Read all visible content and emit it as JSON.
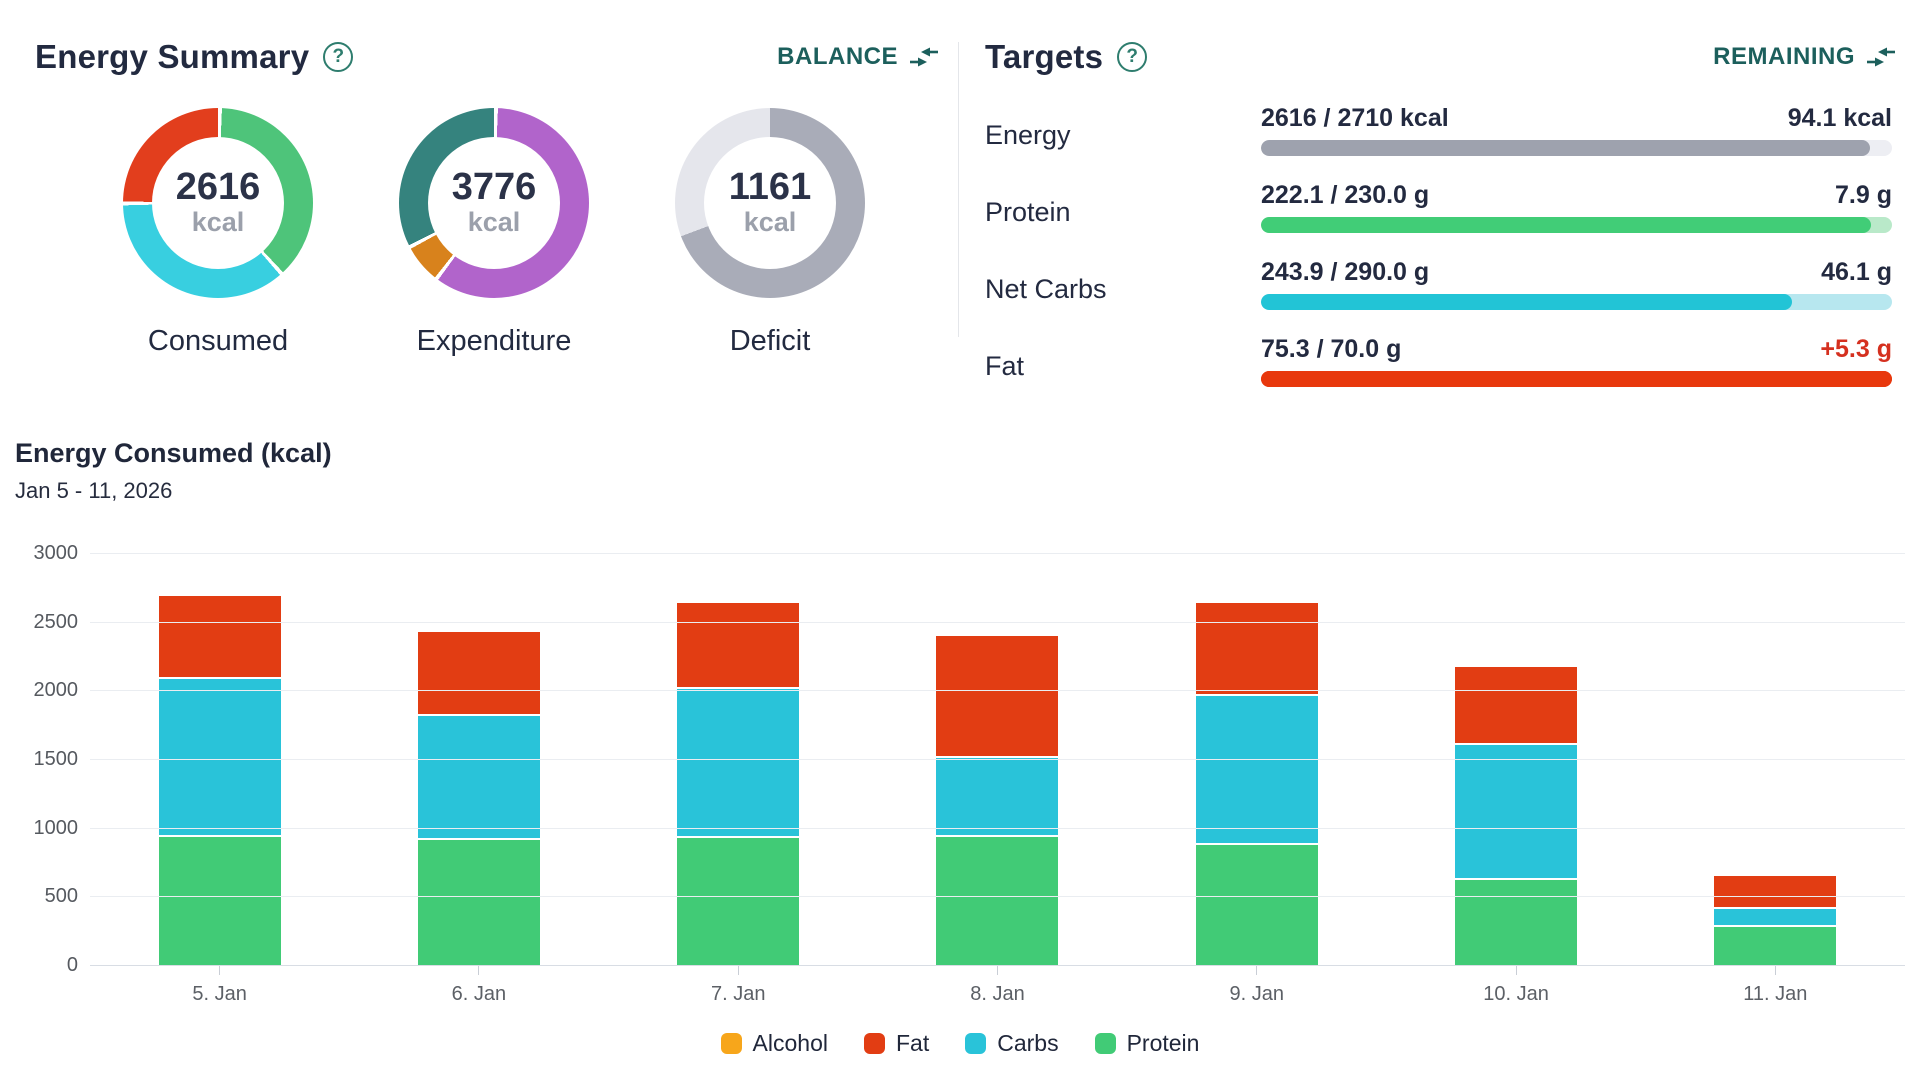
{
  "energy_summary": {
    "title": "Energy Summary",
    "help_glyph": "?",
    "balance_label": "BALANCE",
    "donuts": [
      {
        "label": "Consumed",
        "value": "2616",
        "unit": "kcal",
        "gaps": true,
        "segments": [
          {
            "name": "protein",
            "color": "#4EC47A",
            "pct": 38.0
          },
          {
            "name": "carbs",
            "color": "#38CFE0",
            "pct": 36.6
          },
          {
            "name": "fat",
            "color": "#E23E1D",
            "pct": 25.4
          }
        ]
      },
      {
        "label": "Expenditure",
        "value": "3776",
        "unit": "kcal",
        "gaps": true,
        "segments": [
          {
            "name": "bmr",
            "color": "#B164CB",
            "pct": 60.0
          },
          {
            "name": "exercise",
            "color": "#D8821C",
            "pct": 7.0
          },
          {
            "name": "activity",
            "color": "#35837E",
            "pct": 33.0
          }
        ]
      },
      {
        "label": "Deficit",
        "value": "1161",
        "unit": "kcal",
        "gaps": false,
        "segments": [
          {
            "name": "consumed",
            "color": "#A9ACB8",
            "pct": 69.3
          },
          {
            "name": "remaining",
            "color": "#E5E6EC",
            "pct": 30.7
          }
        ]
      }
    ]
  },
  "targets": {
    "title": "Targets",
    "help_glyph": "?",
    "remaining_label": "REMAINING",
    "rows": [
      {
        "label": "Energy",
        "progress_text": "2616 / 2710 kcal",
        "remaining_text": "94.1 kcal",
        "remaining_color": "#232A40",
        "pct": 96.5,
        "fill": "#9EA2AE",
        "track": "#EDEEF3"
      },
      {
        "label": "Protein",
        "progress_text": "222.1 / 230.0 g",
        "remaining_text": "7.9 g",
        "remaining_color": "#232A40",
        "pct": 96.6,
        "fill": "#41CD77",
        "track": "#B9E9C9"
      },
      {
        "label": "Net Carbs",
        "progress_text": "243.9 / 290.0 g",
        "remaining_text": "46.1 g",
        "remaining_color": "#232A40",
        "pct": 84.1,
        "fill": "#22C4D6",
        "track": "#B7E7EF"
      },
      {
        "label": "Fat",
        "progress_text": "75.3 / 70.0 g",
        "remaining_text": "+5.3 g",
        "remaining_color": "#D5301F",
        "pct": 100,
        "fill": "#E8380D",
        "track": "#E8380D"
      }
    ]
  },
  "chart_data": {
    "type": "bar",
    "stacked": true,
    "title": "Energy Consumed (kcal)",
    "subtitle": "Jan 5 - 11, 2026",
    "categories": [
      "5. Jan",
      "6. Jan",
      "7. Jan",
      "8. Jan",
      "9. Jan",
      "10. Jan",
      "11. Jan"
    ],
    "series": [
      {
        "name": "Protein",
        "color": "#41CB76",
        "values": [
          930,
          912,
          926,
          935,
          873,
          617,
          278
        ]
      },
      {
        "name": "Carbs",
        "color": "#29C3D9",
        "values": [
          1135,
          885,
          1070,
          560,
          1068,
          973,
          118
        ]
      },
      {
        "name": "Fat",
        "color": "#E23D13",
        "values": [
          590,
          600,
          612,
          870,
          668,
          551,
          223
        ]
      },
      {
        "name": "Alcohol",
        "color": "#F7A61B",
        "values": [
          0,
          0,
          0,
          0,
          0,
          0,
          0
        ]
      }
    ],
    "totals": [
      2655,
      2397,
      2608,
      2365,
      2609,
      2141,
      619
    ],
    "legend": [
      {
        "label": "Alcohol",
        "color": "#F7A61B"
      },
      {
        "label": "Fat",
        "color": "#E23D13"
      },
      {
        "label": "Carbs",
        "color": "#29C3D9"
      },
      {
        "label": "Protein",
        "color": "#41CB76"
      }
    ],
    "y_axis": {
      "min": 0,
      "max": 3000,
      "step": 500,
      "ticks": [
        3000,
        2500,
        2000,
        1500,
        1000,
        500,
        0
      ]
    },
    "grid": true,
    "legend_position": "bottom"
  }
}
